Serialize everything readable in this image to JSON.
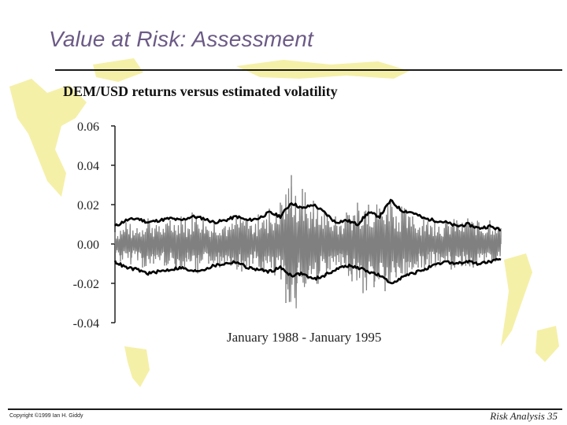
{
  "slide": {
    "title": "Value at Risk: Assessment",
    "copyright": "Copyright ©1999 Ian H. Giddy",
    "page_label": "Risk Analysis 35"
  },
  "colors": {
    "title": "#6b5a86",
    "returns_series": "#808080",
    "volatility_series": "#000000",
    "background_map": "#f5f0a8"
  },
  "chart_data": {
    "type": "line",
    "title": "DEM/USD returns versus estimated volatility",
    "xlabel": "January 1988 - January 1995",
    "ylabel": "",
    "ylim": [
      -0.04,
      0.06
    ],
    "yticks": [
      "0.06",
      "0.04",
      "0.02",
      "0.00",
      "-0.02",
      "-0.04"
    ],
    "ytick_values": [
      0.06,
      0.04,
      0.02,
      0.0,
      -0.02,
      -0.04
    ],
    "x_range": [
      1988,
      1995
    ],
    "grid": false,
    "series": [
      {
        "name": "returns",
        "style": "gray daily returns",
        "x": [
          1988.0,
          1988.1,
          1988.2,
          1988.3,
          1988.4,
          1988.5,
          1988.6,
          1988.7,
          1988.8,
          1988.9,
          1989.0,
          1989.1,
          1989.2,
          1989.3,
          1989.4,
          1989.5,
          1989.6,
          1989.7,
          1989.8,
          1989.9,
          1990.0,
          1990.1,
          1990.2,
          1990.3,
          1990.4,
          1990.5,
          1990.6,
          1990.7,
          1990.8,
          1990.9,
          1991.0,
          1991.1,
          1991.2,
          1991.3,
          1991.4,
          1991.5,
          1991.6,
          1991.7,
          1991.8,
          1991.9,
          1992.0,
          1992.1,
          1992.2,
          1992.3,
          1992.4,
          1992.5,
          1992.6,
          1992.7,
          1992.8,
          1992.9,
          1993.0,
          1993.1,
          1993.2,
          1993.3,
          1993.4,
          1993.5,
          1993.6,
          1993.7,
          1993.8,
          1993.9,
          1994.0,
          1994.1,
          1994.2,
          1994.3,
          1994.4,
          1994.5,
          1994.6,
          1994.7,
          1994.8,
          1994.9,
          1995.0
        ],
        "values": [
          0.006,
          -0.009,
          0.011,
          -0.007,
          0.008,
          -0.012,
          0.013,
          -0.01,
          0.009,
          -0.011,
          0.012,
          -0.013,
          0.014,
          -0.009,
          0.016,
          -0.015,
          0.012,
          -0.01,
          0.011,
          -0.012,
          0.009,
          -0.011,
          0.013,
          -0.014,
          0.012,
          -0.01,
          0.015,
          -0.013,
          0.018,
          -0.016,
          0.021,
          -0.03,
          0.035,
          -0.02,
          0.028,
          -0.018,
          0.022,
          -0.015,
          0.017,
          -0.013,
          0.014,
          -0.012,
          0.016,
          -0.019,
          0.021,
          -0.025,
          0.02,
          -0.022,
          0.018,
          -0.024,
          0.023,
          -0.017,
          0.019,
          -0.015,
          0.014,
          -0.012,
          0.013,
          -0.011,
          0.012,
          -0.01,
          0.011,
          -0.013,
          0.012,
          -0.011,
          0.013,
          -0.012,
          0.011,
          -0.01,
          0.012,
          -0.009,
          0.008
        ]
      },
      {
        "name": "volatility upper",
        "style": "black band",
        "x": [
          1988.0,
          1988.2,
          1988.4,
          1988.6,
          1988.8,
          1989.0,
          1989.2,
          1989.4,
          1989.6,
          1989.8,
          1990.0,
          1990.2,
          1990.4,
          1990.6,
          1990.8,
          1991.0,
          1991.2,
          1991.4,
          1991.6,
          1991.8,
          1992.0,
          1992.2,
          1992.4,
          1992.6,
          1992.8,
          1993.0,
          1993.2,
          1993.4,
          1993.6,
          1993.8,
          1994.0,
          1994.2,
          1994.4,
          1994.6,
          1994.8,
          1995.0
        ],
        "values": [
          0.009,
          0.012,
          0.013,
          0.011,
          0.012,
          0.013,
          0.012,
          0.014,
          0.013,
          0.011,
          0.012,
          0.014,
          0.012,
          0.013,
          0.016,
          0.014,
          0.021,
          0.018,
          0.02,
          0.016,
          0.011,
          0.012,
          0.01,
          0.016,
          0.014,
          0.022,
          0.017,
          0.016,
          0.013,
          0.012,
          0.011,
          0.009,
          0.01,
          0.008,
          0.009,
          0.007
        ]
      },
      {
        "name": "volatility lower",
        "style": "black band",
        "x": [
          1988.0,
          1988.2,
          1988.4,
          1988.6,
          1988.8,
          1989.0,
          1989.2,
          1989.4,
          1989.6,
          1989.8,
          1990.0,
          1990.2,
          1990.4,
          1990.6,
          1990.8,
          1991.0,
          1991.2,
          1991.4,
          1991.6,
          1991.8,
          1992.0,
          1992.2,
          1992.4,
          1992.6,
          1992.8,
          1993.0,
          1993.2,
          1993.4,
          1993.6,
          1993.8,
          1994.0,
          1994.2,
          1994.4,
          1994.6,
          1994.8,
          1995.0
        ],
        "values": [
          -0.009,
          -0.012,
          -0.013,
          -0.015,
          -0.014,
          -0.013,
          -0.012,
          -0.014,
          -0.013,
          -0.011,
          -0.01,
          -0.009,
          -0.012,
          -0.013,
          -0.014,
          -0.012,
          -0.016,
          -0.015,
          -0.018,
          -0.016,
          -0.013,
          -0.011,
          -0.012,
          -0.014,
          -0.016,
          -0.02,
          -0.017,
          -0.015,
          -0.013,
          -0.011,
          -0.009,
          -0.01,
          -0.009,
          -0.01,
          -0.009,
          -0.008
        ]
      }
    ]
  }
}
